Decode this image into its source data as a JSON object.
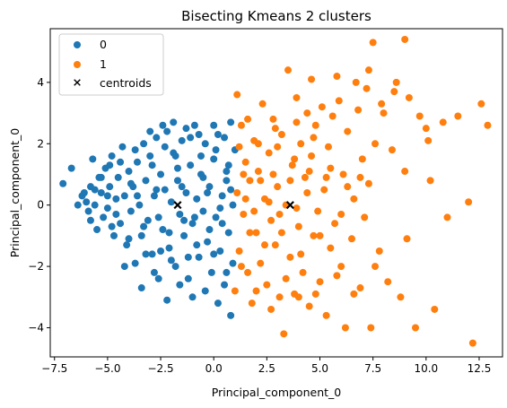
{
  "chart_data": {
    "type": "scatter",
    "title": "Bisecting Kmeans 2 clusters",
    "xlabel": "Principal_component_0",
    "ylabel": "Principal_component_0",
    "xlim": [
      -7.7,
      13.6
    ],
    "ylim": [
      -4.95,
      5.75
    ],
    "x_ticks": [
      -7.5,
      -5.0,
      -2.5,
      0.0,
      2.5,
      5.0,
      7.5,
      10.0,
      12.5
    ],
    "x_tick_labels": [
      "−7.5",
      "−5.0",
      "−2.5",
      "0.0",
      "2.5",
      "5.0",
      "7.5",
      "10.0",
      "12.5"
    ],
    "y_ticks": [
      -4,
      -2,
      0,
      2,
      4
    ],
    "y_tick_labels": [
      "−4",
      "−2",
      "0",
      "2",
      "4"
    ],
    "legend_position": "upper-left",
    "grid": false,
    "series": [
      {
        "name": "0",
        "color": "#1f77b4",
        "marker": "circle",
        "points": [
          [
            -7.1,
            0.7
          ],
          [
            -6.7,
            1.2
          ],
          [
            -6.2,
            0.3
          ],
          [
            -6.0,
            0.1
          ],
          [
            -5.9,
            -0.2
          ],
          [
            -5.8,
            0.6
          ],
          [
            -5.7,
            1.5
          ],
          [
            -5.6,
            0.0
          ],
          [
            -5.5,
            -0.8
          ],
          [
            -5.4,
            0.9
          ],
          [
            -5.3,
            0.4
          ],
          [
            -5.2,
            -0.4
          ],
          [
            -5.1,
            1.2
          ],
          [
            -5.0,
            -0.1
          ],
          [
            -4.9,
            0.6
          ],
          [
            -4.8,
            1.6
          ],
          [
            -4.7,
            -1.0
          ],
          [
            -4.6,
            0.2
          ],
          [
            -4.5,
            0.9
          ],
          [
            -4.4,
            -0.6
          ],
          [
            -4.3,
            1.9
          ],
          [
            -4.2,
            0.3
          ],
          [
            -4.1,
            -1.3
          ],
          [
            -4.0,
            1.1
          ],
          [
            -3.9,
            -0.2
          ],
          [
            -3.8,
            0.6
          ],
          [
            -3.7,
            -1.9
          ],
          [
            -3.6,
            1.4
          ],
          [
            -3.5,
            0.0
          ],
          [
            -3.4,
            -1.0
          ],
          [
            -3.3,
            2.0
          ],
          [
            -3.2,
            0.8
          ],
          [
            -3.1,
            -0.5
          ],
          [
            -3.0,
            1.6
          ],
          [
            -2.9,
            -1.6
          ],
          [
            -2.8,
            0.3
          ],
          [
            -2.7,
            2.2
          ],
          [
            -2.6,
            -2.4
          ],
          [
            -2.5,
            1.0
          ],
          [
            -2.4,
            -0.8
          ],
          [
            -2.3,
            0.5
          ],
          [
            -2.2,
            2.4
          ],
          [
            -2.1,
            -1.4
          ],
          [
            -2.0,
            0.1
          ],
          [
            -1.9,
            1.7
          ],
          [
            -1.8,
            -2.0
          ],
          [
            -1.7,
            0.8
          ],
          [
            -1.6,
            -0.3
          ],
          [
            -1.5,
            2.1
          ],
          [
            -1.4,
            -1.0
          ],
          [
            -1.3,
            0.4
          ],
          [
            -1.2,
            -2.4
          ],
          [
            -1.1,
            1.3
          ],
          [
            -1.0,
            -0.6
          ],
          [
            -0.9,
            2.6
          ],
          [
            -0.8,
            0.2
          ],
          [
            -0.7,
            -1.7
          ],
          [
            -0.6,
            1.0
          ],
          [
            -0.5,
            -0.2
          ],
          [
            -0.4,
            2.0
          ],
          [
            -0.3,
            -1.2
          ],
          [
            -0.2,
            0.6
          ],
          [
            -0.1,
            -2.2
          ],
          [
            0.0,
            1.5
          ],
          [
            0.1,
            -0.4
          ],
          [
            0.2,
            2.3
          ],
          [
            0.3,
            -1.5
          ],
          [
            0.4,
            0.3
          ],
          [
            0.5,
            -2.6
          ],
          [
            0.6,
            1.1
          ],
          [
            0.7,
            -0.9
          ],
          [
            0.8,
            2.7
          ],
          [
            0.8,
            -3.6
          ],
          [
            0.9,
            0.0
          ],
          [
            0.9,
            -1.9
          ],
          [
            1.0,
            1.8
          ],
          [
            -6.4,
            0.0
          ],
          [
            -5.8,
            -0.5
          ],
          [
            -5.3,
            0.9
          ],
          [
            -4.8,
            -0.7
          ],
          [
            -4.4,
            1.4
          ],
          [
            -4.0,
            -1.1
          ],
          [
            -3.6,
            0.3
          ],
          [
            -3.2,
            -1.6
          ],
          [
            -2.9,
            1.3
          ],
          [
            -2.6,
            -0.4
          ],
          [
            -2.3,
            1.9
          ],
          [
            -2.0,
            -1.8
          ],
          [
            -1.7,
            1.2
          ],
          [
            -1.4,
            -0.5
          ],
          [
            -1.1,
            2.2
          ],
          [
            -0.8,
            -1.3
          ],
          [
            -0.5,
            0.9
          ],
          [
            -0.2,
            -0.8
          ],
          [
            0.1,
            1.8
          ],
          [
            0.4,
            -0.6
          ],
          [
            0.7,
            1.3
          ],
          [
            -4.2,
            -2.0
          ],
          [
            -3.4,
            -2.7
          ],
          [
            -2.8,
            -2.2
          ],
          [
            -2.2,
            -3.1
          ],
          [
            -1.6,
            -2.6
          ],
          [
            -1.0,
            -3.0
          ],
          [
            -0.4,
            -2.8
          ],
          [
            0.2,
            -3.2
          ],
          [
            0.6,
            -2.2
          ],
          [
            -3.0,
            2.4
          ],
          [
            -2.4,
            2.6
          ],
          [
            -1.9,
            2.7
          ],
          [
            -1.3,
            2.5
          ],
          [
            -0.7,
            2.3
          ],
          [
            0.0,
            2.6
          ],
          [
            0.5,
            2.2
          ],
          [
            -5.0,
            0.3
          ],
          [
            -4.6,
            -0.3
          ],
          [
            -3.9,
            0.7
          ],
          [
            -3.3,
            -0.7
          ],
          [
            -2.7,
            0.5
          ],
          [
            -2.1,
            -0.9
          ],
          [
            -1.5,
            0.6
          ],
          [
            -0.9,
            -0.4
          ],
          [
            -0.3,
            0.4
          ],
          [
            0.3,
            -0.1
          ],
          [
            0.8,
            0.5
          ],
          [
            -2.5,
            -1.5
          ],
          [
            -1.8,
            1.6
          ],
          [
            -1.2,
            -1.7
          ],
          [
            -0.6,
            1.6
          ],
          [
            0.0,
            -1.6
          ],
          [
            0.6,
            0.8
          ],
          [
            -3.7,
            1.8
          ],
          [
            -4.9,
            1.3
          ],
          [
            -5.6,
            0.5
          ],
          [
            -6.1,
            0.4
          ]
        ]
      },
      {
        "name": "1",
        "color": "#ff7f0e",
        "marker": "circle",
        "points": [
          [
            1.0,
            -2.8
          ],
          [
            1.1,
            3.6
          ],
          [
            1.1,
            0.4
          ],
          [
            1.2,
            -1.5
          ],
          [
            1.3,
            2.6
          ],
          [
            1.4,
            -0.3
          ],
          [
            1.5,
            1.4
          ],
          [
            1.6,
            -2.2
          ],
          [
            1.7,
            0.8
          ],
          [
            1.8,
            -3.2
          ],
          [
            1.9,
            2.1
          ],
          [
            2.0,
            -0.9
          ],
          [
            2.1,
            1.1
          ],
          [
            2.2,
            -1.9
          ],
          [
            2.3,
            3.3
          ],
          [
            2.4,
            0.2
          ],
          [
            2.5,
            -2.6
          ],
          [
            2.6,
            1.7
          ],
          [
            2.7,
            -0.5
          ],
          [
            2.8,
            2.8
          ],
          [
            2.9,
            -1.3
          ],
          [
            3.0,
            0.6
          ],
          [
            3.1,
            -3.0
          ],
          [
            3.2,
            2.3
          ],
          [
            3.3,
            -4.2
          ],
          [
            3.4,
            0.0
          ],
          [
            3.5,
            4.4
          ],
          [
            3.6,
            -1.7
          ],
          [
            3.7,
            1.3
          ],
          [
            3.8,
            -2.9
          ],
          [
            3.9,
            3.5
          ],
          [
            4.0,
            -0.7
          ],
          [
            4.1,
            2.0
          ],
          [
            4.2,
            -2.2
          ],
          [
            4.3,
            0.9
          ],
          [
            4.4,
            3.0
          ],
          [
            4.5,
            -3.3
          ],
          [
            4.6,
            1.6
          ],
          [
            4.7,
            -1.0
          ],
          [
            4.8,
            2.6
          ],
          [
            4.9,
            -0.2
          ],
          [
            5.0,
            -2.5
          ],
          [
            5.1,
            3.2
          ],
          [
            5.2,
            0.5
          ],
          [
            5.3,
            -3.6
          ],
          [
            5.4,
            1.9
          ],
          [
            5.5,
            -1.4
          ],
          [
            5.6,
            2.9
          ],
          [
            5.7,
            -0.6
          ],
          [
            5.9,
            3.4
          ],
          [
            6.0,
            -2.0
          ],
          [
            6.1,
            1.0
          ],
          [
            6.2,
            -4.0
          ],
          [
            6.3,
            2.4
          ],
          [
            6.5,
            -1.1
          ],
          [
            6.6,
            0.2
          ],
          [
            6.8,
            3.1
          ],
          [
            6.9,
            -2.7
          ],
          [
            7.0,
            1.5
          ],
          [
            7.1,
            -0.4
          ],
          [
            7.2,
            3.8
          ],
          [
            7.3,
            0.7
          ],
          [
            7.4,
            -4.0
          ],
          [
            7.5,
            5.3
          ],
          [
            7.6,
            2.0
          ],
          [
            7.8,
            -1.5
          ],
          [
            8.0,
            3.0
          ],
          [
            8.2,
            -2.5
          ],
          [
            8.4,
            1.8
          ],
          [
            8.6,
            4.0
          ],
          [
            8.8,
            -3.0
          ],
          [
            9.0,
            5.4
          ],
          [
            9.1,
            -1.1
          ],
          [
            9.2,
            3.5
          ],
          [
            9.5,
            -4.0
          ],
          [
            9.7,
            2.9
          ],
          [
            10.0,
            2.5
          ],
          [
            10.2,
            0.8
          ],
          [
            10.4,
            -3.4
          ],
          [
            10.8,
            2.7
          ],
          [
            11.0,
            -0.4
          ],
          [
            11.5,
            2.9
          ],
          [
            12.0,
            0.1
          ],
          [
            12.2,
            -4.5
          ],
          [
            12.6,
            3.3
          ],
          [
            12.9,
            2.6
          ],
          [
            10.1,
            2.1
          ],
          [
            8.5,
            3.7
          ],
          [
            7.9,
            3.3
          ],
          [
            7.3,
            4.4
          ],
          [
            9.0,
            1.1
          ],
          [
            6.7,
            4.0
          ],
          [
            5.8,
            4.2
          ],
          [
            4.6,
            4.1
          ],
          [
            3.9,
            2.7
          ],
          [
            2.9,
            2.5
          ],
          [
            2.1,
            2.0
          ],
          [
            1.4,
            1.0
          ],
          [
            1.7,
            -0.9
          ],
          [
            2.4,
            -1.3
          ],
          [
            3.2,
            -0.9
          ],
          [
            4.1,
            -1.6
          ],
          [
            5.0,
            -1.0
          ],
          [
            5.8,
            -2.3
          ],
          [
            6.6,
            -2.9
          ],
          [
            7.6,
            -2.0
          ],
          [
            3.6,
            0.8
          ],
          [
            4.4,
            0.4
          ],
          [
            2.8,
            1.0
          ],
          [
            1.9,
            -0.2
          ],
          [
            1.2,
            1.9
          ],
          [
            1.6,
            2.8
          ],
          [
            2.6,
            0.1
          ],
          [
            3.0,
            1.9
          ],
          [
            3.8,
            1.5
          ],
          [
            4.7,
            2.2
          ],
          [
            5.5,
            1.2
          ],
          [
            6.3,
            0.6
          ],
          [
            2.0,
            -2.8
          ],
          [
            2.7,
            -3.4
          ],
          [
            3.4,
            -2.4
          ],
          [
            4.0,
            -3.0
          ],
          [
            4.8,
            -2.9
          ],
          [
            1.3,
            -2.0
          ],
          [
            1.5,
            0.2
          ],
          [
            2.2,
            0.8
          ],
          [
            3.1,
            -0.3
          ],
          [
            3.9,
            -0.1
          ],
          [
            4.5,
            1.1
          ],
          [
            5.3,
            0.9
          ],
          [
            6.0,
            -0.3
          ],
          [
            6.9,
            0.9
          ]
        ]
      },
      {
        "name": "centroids",
        "color": "#000000",
        "marker": "x",
        "points": [
          [
            -1.7,
            0.0
          ],
          [
            3.6,
            0.0
          ]
        ]
      }
    ]
  }
}
